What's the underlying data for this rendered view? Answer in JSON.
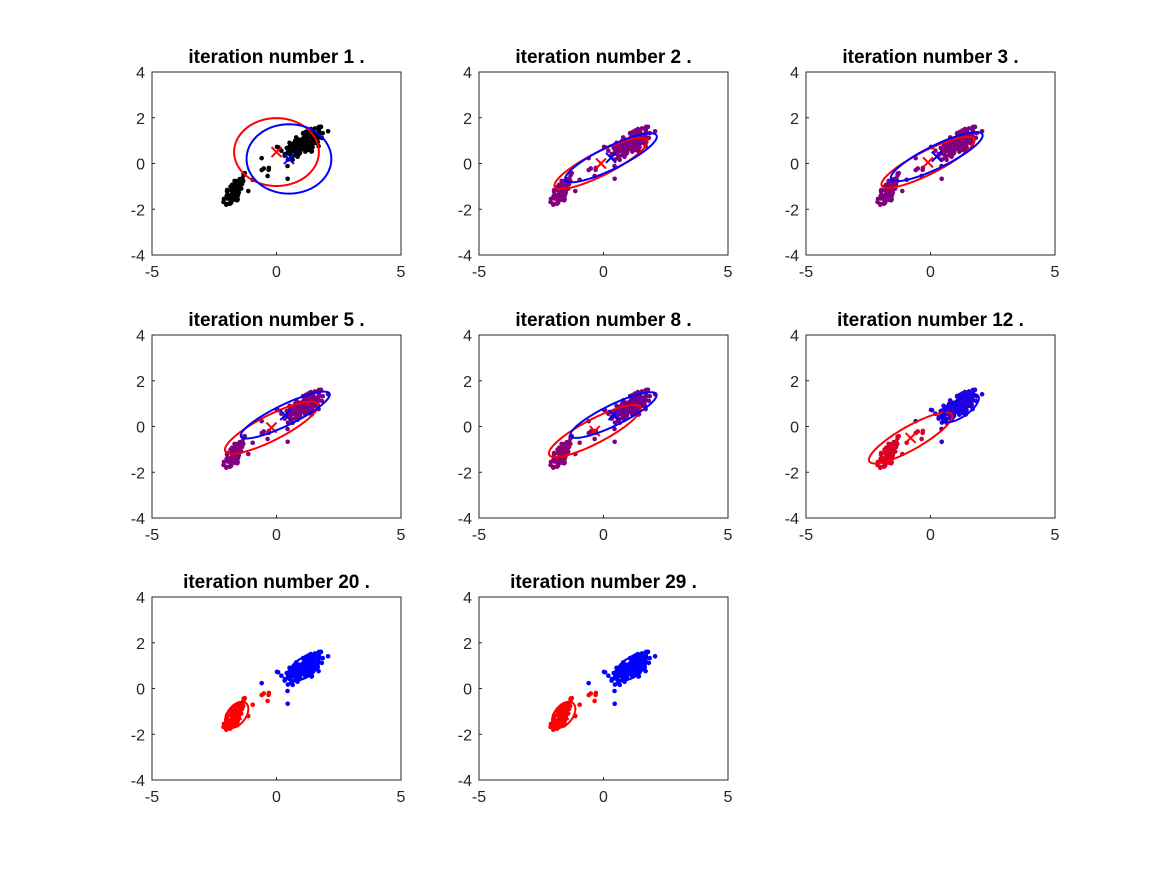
{
  "figure": {
    "background": "#ffffff",
    "colors": {
      "cluster_a": "#ff0000",
      "cluster_b": "#0000ff",
      "unassigned": "#000000"
    }
  },
  "chart_data": [
    {
      "type": "scatter",
      "title": "iteration number 1 .",
      "xlim": [
        -5,
        5
      ],
      "ylim": [
        -4,
        4
      ],
      "xticks": [
        -5,
        0,
        5
      ],
      "yticks": [
        -4,
        -2,
        0,
        2,
        4
      ],
      "point_mix": null,
      "components": [
        {
          "color": "#ff0000",
          "mean": [
            0,
            0.5
          ],
          "sigma": [
            [
              2.9,
              0
            ],
            [
              0,
              2.2
            ]
          ]
        },
        {
          "color": "#0000ff",
          "mean": [
            0.5,
            0.2
          ],
          "sigma": [
            [
              2.9,
              0
            ],
            [
              0,
              2.3
            ]
          ]
        }
      ]
    },
    {
      "type": "scatter",
      "title": "iteration number 2 .",
      "xlim": [
        -5,
        5
      ],
      "ylim": [
        -4,
        4
      ],
      "xticks": [
        -5,
        0,
        5
      ],
      "yticks": [
        -4,
        -2,
        0,
        2,
        4
      ],
      "point_mix": [
        0.5,
        0.5
      ],
      "components": [
        {
          "color": "#ff0000",
          "mean": [
            -0.1,
            0
          ],
          "sigma": [
            [
              3.5,
              1.8
            ],
            [
              1.8,
              1.25
            ]
          ]
        },
        {
          "color": "#0000ff",
          "mean": [
            0.3,
            0.25
          ],
          "sigma": [
            [
              3.4,
              1.7
            ],
            [
              1.7,
              1.15
            ]
          ]
        }
      ]
    },
    {
      "type": "scatter",
      "title": "iteration number 3 .",
      "xlim": [
        -5,
        5
      ],
      "ylim": [
        -4,
        4
      ],
      "xticks": [
        -5,
        0,
        5
      ],
      "yticks": [
        -4,
        -2,
        0,
        2,
        4
      ],
      "point_mix": [
        0.5,
        0.5
      ],
      "components": [
        {
          "color": "#ff0000",
          "mean": [
            -0.1,
            0.05
          ],
          "sigma": [
            [
              3.5,
              1.8
            ],
            [
              1.8,
              1.25
            ]
          ]
        },
        {
          "color": "#0000ff",
          "mean": [
            0.25,
            0.3
          ],
          "sigma": [
            [
              3.4,
              1.7
            ],
            [
              1.7,
              1.15
            ]
          ]
        }
      ]
    },
    {
      "type": "scatter",
      "title": "iteration number 5 .",
      "xlim": [
        -5,
        5
      ],
      "ylim": [
        -4,
        4
      ],
      "xticks": [
        -5,
        0,
        5
      ],
      "yticks": [
        -4,
        -2,
        0,
        2,
        4
      ],
      "point_mix": [
        0.5,
        0.5
      ],
      "components": [
        {
          "color": "#ff0000",
          "mean": [
            -0.2,
            -0.05
          ],
          "sigma": [
            [
              3.5,
              1.8
            ],
            [
              1.8,
              1.3
            ]
          ]
        },
        {
          "color": "#0000ff",
          "mean": [
            0.35,
            0.5
          ],
          "sigma": [
            [
              3.2,
              1.6
            ],
            [
              1.6,
              1.05
            ]
          ]
        }
      ]
    },
    {
      "type": "scatter",
      "title": "iteration number 8 .",
      "xlim": [
        -5,
        5
      ],
      "ylim": [
        -4,
        4
      ],
      "xticks": [
        -5,
        0,
        5
      ],
      "yticks": [
        -4,
        -2,
        0,
        2,
        4
      ],
      "point_mix": [
        0.55,
        0.45
      ],
      "components": [
        {
          "color": "#ff0000",
          "mean": [
            -0.35,
            -0.2
          ],
          "sigma": [
            [
              3.4,
              1.8
            ],
            [
              1.8,
              1.3
            ]
          ]
        },
        {
          "color": "#0000ff",
          "mean": [
            0.4,
            0.5
          ],
          "sigma": [
            [
              3.0,
              1.5
            ],
            [
              1.5,
              1.0
            ]
          ]
        }
      ]
    },
    {
      "type": "scatter",
      "title": "iteration number 12 .",
      "xlim": [
        -5,
        5
      ],
      "ylim": [
        -4,
        4
      ],
      "xticks": [
        -5,
        0,
        5
      ],
      "yticks": [
        -4,
        -2,
        0,
        2,
        4
      ],
      "point_mix": [
        0.85,
        0.15
      ],
      "components": [
        {
          "color": "#ff0000",
          "mean": [
            -0.8,
            -0.5
          ],
          "sigma": [
            [
              2.8,
              1.6
            ],
            [
              1.6,
              1.25
            ]
          ]
        },
        {
          "color": "#0000ff",
          "mean": [
            1.2,
            0.8
          ],
          "sigma": [
            [
              0.55,
              0.32
            ],
            [
              0.32,
              0.38
            ]
          ]
        }
      ]
    },
    {
      "type": "scatter",
      "title": "iteration number 20 .",
      "xlim": [
        -5,
        5
      ],
      "ylim": [
        -4,
        4
      ],
      "xticks": [
        -5,
        0,
        5
      ],
      "yticks": [
        -4,
        -2,
        0,
        2,
        4
      ],
      "point_mix": [
        1,
        0
      ],
      "components": [
        {
          "color": "#ff0000",
          "mean": [
            -1.6,
            -1.15
          ],
          "sigma": [
            [
              0.22,
              0.12
            ],
            [
              0.12,
              0.33
            ]
          ]
        },
        {
          "color": "#0000ff",
          "mean": [
            1.1,
            0.9
          ],
          "sigma": [
            [
              0.38,
              0.17
            ],
            [
              0.17,
              0.3
            ]
          ]
        }
      ]
    },
    {
      "type": "scatter",
      "title": "iteration number 29 .",
      "xlim": [
        -5,
        5
      ],
      "ylim": [
        -4,
        4
      ],
      "xticks": [
        -5,
        0,
        5
      ],
      "yticks": [
        -4,
        -2,
        0,
        2,
        4
      ],
      "point_mix": [
        1,
        0
      ],
      "components": [
        {
          "color": "#ff0000",
          "mean": [
            -1.6,
            -1.15
          ],
          "sigma": [
            [
              0.22,
              0.12
            ],
            [
              0.12,
              0.33
            ]
          ]
        },
        {
          "color": "#0000ff",
          "mean": [
            1.1,
            0.9
          ],
          "sigma": [
            [
              0.38,
              0.17
            ],
            [
              0.17,
              0.3
            ]
          ]
        }
      ]
    }
  ]
}
